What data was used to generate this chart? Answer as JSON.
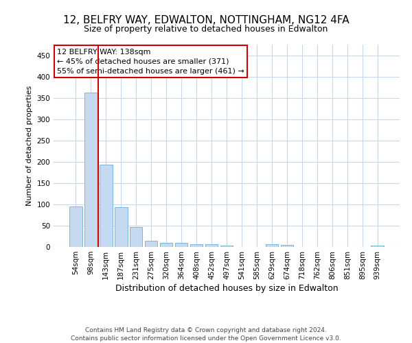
{
  "title_line1": "12, BELFRY WAY, EDWALTON, NOTTINGHAM, NG12 4FA",
  "title_line2": "Size of property relative to detached houses in Edwalton",
  "xlabel": "Distribution of detached houses by size in Edwalton",
  "ylabel": "Number of detached properties",
  "footer_line1": "Contains HM Land Registry data © Crown copyright and database right 2024.",
  "footer_line2": "Contains public sector information licensed under the Open Government Licence v3.0.",
  "bar_labels": [
    "54sqm",
    "98sqm",
    "143sqm",
    "187sqm",
    "231sqm",
    "275sqm",
    "320sqm",
    "364sqm",
    "408sqm",
    "452sqm",
    "497sqm",
    "541sqm",
    "585sqm",
    "629sqm",
    "674sqm",
    "718sqm",
    "762sqm",
    "806sqm",
    "851sqm",
    "895sqm",
    "939sqm"
  ],
  "bar_values": [
    95,
    362,
    193,
    93,
    46,
    14,
    10,
    10,
    6,
    6,
    3,
    0,
    0,
    6,
    5,
    0,
    0,
    0,
    0,
    0,
    3
  ],
  "bar_color": "#c5d9f0",
  "bar_edge_color": "#6aaed6",
  "vline_color": "#cc0000",
  "vline_x": 1.5,
  "annotation_text_line1": "12 BELFRY WAY: 138sqm",
  "annotation_text_line2": "← 45% of detached houses are smaller (371)",
  "annotation_text_line3": "55% of semi-detached houses are larger (461) →",
  "annotation_box_facecolor": "#ffffff",
  "annotation_box_edgecolor": "#cc0000",
  "ylim": [
    0,
    475
  ],
  "yticks": [
    0,
    50,
    100,
    150,
    200,
    250,
    300,
    350,
    400,
    450
  ],
  "bg_color": "#ffffff",
  "grid_color": "#c8d8e8",
  "title1_fontsize": 11,
  "title2_fontsize": 9,
  "ylabel_fontsize": 8,
  "xlabel_fontsize": 9,
  "tick_fontsize": 7.5,
  "footer_fontsize": 6.5
}
